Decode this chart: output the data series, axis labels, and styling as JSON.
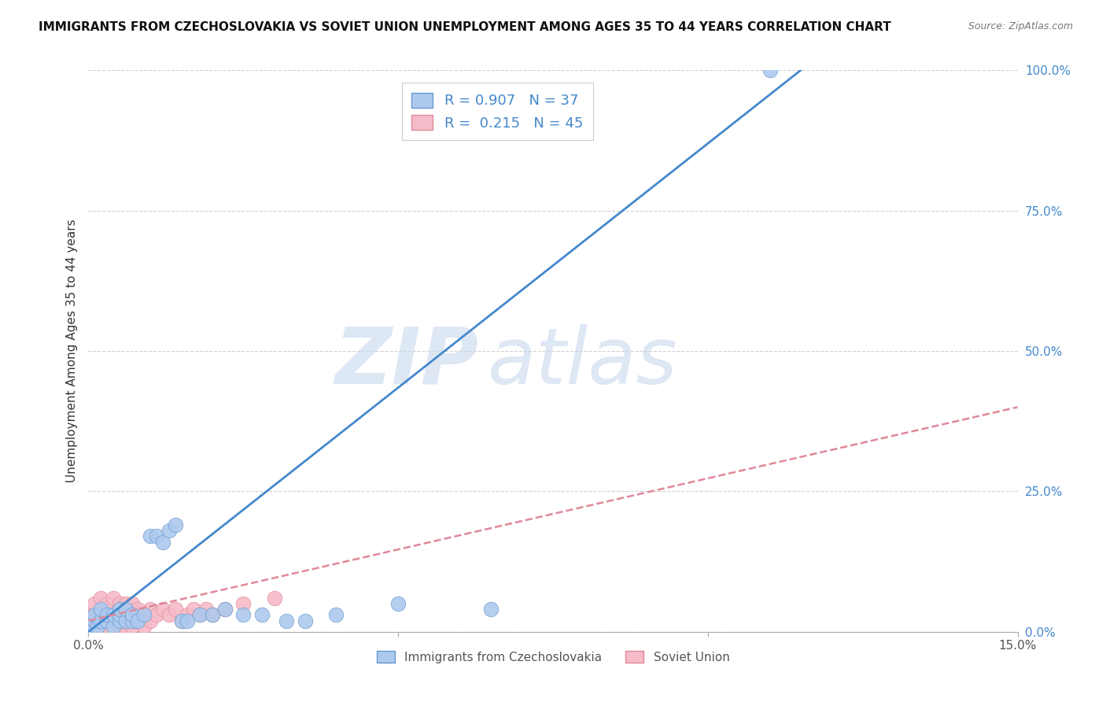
{
  "title": "IMMIGRANTS FROM CZECHOSLOVAKIA VS SOVIET UNION UNEMPLOYMENT AMONG AGES 35 TO 44 YEARS CORRELATION CHART",
  "source": "Source: ZipAtlas.com",
  "ylabel": "Unemployment Among Ages 35 to 44 years",
  "xlim": [
    0.0,
    0.15
  ],
  "ylim": [
    0.0,
    1.0
  ],
  "yticks": [
    0.0,
    0.25,
    0.5,
    0.75,
    1.0
  ],
  "yticklabels": [
    "0.0%",
    "25.0%",
    "50.0%",
    "75.0%",
    "100.0%"
  ],
  "watermark_zip": "ZIP",
  "watermark_atlas": "atlas",
  "series1_label": "Immigrants from Czechoslovakia",
  "series1_color": "#adc9ee",
  "series1_edge_color": "#6699cc",
  "series1_R": 0.907,
  "series1_N": 37,
  "series1_line_color": "#4488cc",
  "series2_label": "Soviet Union",
  "series2_color": "#f5bbc8",
  "series2_edge_color": "#e08898",
  "series2_R": 0.215,
  "series2_N": 45,
  "series2_line_color": "#e08898",
  "czecho_x": [
    0.0005,
    0.001,
    0.001,
    0.0015,
    0.002,
    0.002,
    0.003,
    0.003,
    0.004,
    0.004,
    0.005,
    0.005,
    0.005,
    0.006,
    0.006,
    0.007,
    0.007,
    0.008,
    0.009,
    0.01,
    0.011,
    0.012,
    0.013,
    0.014,
    0.015,
    0.016,
    0.018,
    0.02,
    0.022,
    0.025,
    0.028,
    0.032,
    0.035,
    0.04,
    0.05,
    0.065,
    0.11
  ],
  "czecho_y": [
    0.01,
    0.02,
    0.03,
    0.01,
    0.02,
    0.04,
    0.02,
    0.03,
    0.01,
    0.03,
    0.02,
    0.03,
    0.04,
    0.02,
    0.04,
    0.02,
    0.03,
    0.02,
    0.03,
    0.17,
    0.17,
    0.16,
    0.18,
    0.19,
    0.02,
    0.02,
    0.03,
    0.03,
    0.04,
    0.03,
    0.03,
    0.02,
    0.02,
    0.03,
    0.05,
    0.04,
    1.0
  ],
  "soviet_x": [
    0.0002,
    0.0004,
    0.0005,
    0.0007,
    0.001,
    0.001,
    0.001,
    0.0015,
    0.002,
    0.002,
    0.002,
    0.003,
    0.003,
    0.003,
    0.004,
    0.004,
    0.004,
    0.005,
    0.005,
    0.005,
    0.006,
    0.006,
    0.006,
    0.007,
    0.007,
    0.007,
    0.008,
    0.008,
    0.009,
    0.009,
    0.01,
    0.01,
    0.011,
    0.012,
    0.013,
    0.014,
    0.015,
    0.016,
    0.017,
    0.018,
    0.019,
    0.02,
    0.022,
    0.025,
    0.03
  ],
  "soviet_y": [
    0.01,
    0.02,
    0.03,
    0.01,
    0.01,
    0.03,
    0.05,
    0.02,
    0.01,
    0.03,
    0.06,
    0.01,
    0.03,
    0.05,
    0.01,
    0.03,
    0.06,
    0.01,
    0.03,
    0.05,
    0.01,
    0.03,
    0.05,
    0.01,
    0.03,
    0.05,
    0.02,
    0.04,
    0.01,
    0.03,
    0.02,
    0.04,
    0.03,
    0.04,
    0.03,
    0.04,
    0.02,
    0.03,
    0.04,
    0.03,
    0.04,
    0.03,
    0.04,
    0.05,
    0.06
  ],
  "czecho_line_x": [
    0.0,
    0.115
  ],
  "czecho_line_y": [
    0.0,
    1.0
  ],
  "soviet_line_x": [
    0.0,
    0.15
  ],
  "soviet_line_y": [
    0.02,
    0.4
  ],
  "background_color": "#ffffff",
  "grid_color": "#cccccc",
  "title_fontsize": 11,
  "axis_label_fontsize": 11,
  "tick_fontsize": 11,
  "legend_fontsize": 13,
  "watermark_color_zip": "#c8d8ee",
  "watermark_color_atlas": "#c8d8ee",
  "watermark_fontsize": 72
}
